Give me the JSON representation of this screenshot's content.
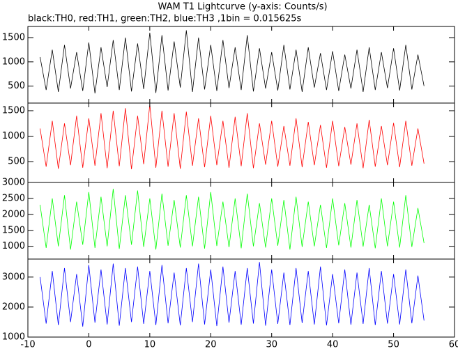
{
  "chart_data": [
    {
      "type": "line",
      "title": "WAM T1 Lightcurve (y-axis: Counts/s)",
      "subtitle": "black:TH0, red:TH1, green:TH2, blue:TH3 ,1bin = 0.015625s",
      "color": "#000000",
      "x": [
        -8,
        -7,
        -6,
        -5,
        -4,
        -3,
        -2,
        -1,
        0,
        1,
        2,
        3,
        4,
        5,
        6,
        7,
        8,
        9,
        10,
        11,
        12,
        13,
        14,
        15,
        16,
        17,
        18,
        19,
        20,
        21,
        22,
        23,
        24,
        25,
        26,
        27,
        28,
        29,
        30,
        31,
        32,
        33,
        34,
        35,
        36,
        37,
        38,
        39,
        40,
        41,
        42,
        43,
        44,
        45,
        46,
        47,
        48,
        49,
        50,
        51,
        52,
        53,
        54,
        55
      ],
      "values": [
        1100,
        420,
        1250,
        380,
        1350,
        450,
        1200,
        400,
        1400,
        350,
        1300,
        480,
        1450,
        420,
        1500,
        390,
        1380,
        440,
        1600,
        360,
        1550,
        410,
        1420,
        470,
        1650,
        380,
        1500,
        430,
        1350,
        400,
        1450,
        460,
        1300,
        420,
        1550,
        390,
        1280,
        450,
        1200,
        410,
        1350,
        430,
        1250,
        380,
        1300,
        470,
        1180,
        420,
        1220,
        400,
        1150,
        450,
        1250,
        380,
        1300,
        420,
        1200,
        460,
        1280,
        410,
        1350,
        430,
        1150,
        500
      ],
      "ylim": [
        150,
        1730
      ],
      "yticks": [
        500,
        1000,
        1500
      ]
    },
    {
      "type": "line",
      "color": "#ff0000",
      "x": [
        -8,
        -7,
        -6,
        -5,
        -4,
        -3,
        -2,
        -1,
        0,
        1,
        2,
        3,
        4,
        5,
        6,
        7,
        8,
        9,
        10,
        11,
        12,
        13,
        14,
        15,
        16,
        17,
        18,
        19,
        20,
        21,
        22,
        23,
        24,
        25,
        26,
        27,
        28,
        29,
        30,
        31,
        32,
        33,
        34,
        35,
        36,
        37,
        38,
        39,
        40,
        41,
        42,
        43,
        44,
        45,
        46,
        47,
        48,
        49,
        50,
        51,
        52,
        53,
        54,
        55
      ],
      "values": [
        1150,
        400,
        1300,
        360,
        1250,
        430,
        1400,
        380,
        1350,
        420,
        1450,
        370,
        1500,
        410,
        1550,
        350,
        1400,
        450,
        1620,
        380,
        1500,
        400,
        1450,
        360,
        1480,
        420,
        1350,
        390,
        1400,
        430,
        1300,
        380,
        1380,
        410,
        1450,
        370,
        1250,
        440,
        1300,
        400,
        1200,
        420,
        1350,
        390,
        1280,
        430,
        1220,
        380,
        1300,
        410,
        1180,
        440,
        1250,
        370,
        1320,
        400,
        1200,
        430,
        1260,
        390,
        1300,
        420,
        1150,
        460
      ],
      "ylim": [
        90,
        1650
      ],
      "yticks": [
        500,
        1000,
        1500
      ]
    },
    {
      "type": "line",
      "color": "#00ff00",
      "x": [
        -8,
        -7,
        -6,
        -5,
        -4,
        -3,
        -2,
        -1,
        0,
        1,
        2,
        3,
        4,
        5,
        6,
        7,
        8,
        9,
        10,
        11,
        12,
        13,
        14,
        15,
        16,
        17,
        18,
        19,
        20,
        21,
        22,
        23,
        24,
        25,
        26,
        27,
        28,
        29,
        30,
        31,
        32,
        33,
        34,
        35,
        36,
        37,
        38,
        39,
        40,
        41,
        42,
        43,
        44,
        45,
        46,
        47,
        48,
        49,
        50,
        51,
        52,
        53,
        54,
        55
      ],
      "values": [
        2300,
        950,
        2500,
        1000,
        2600,
        900,
        2400,
        1050,
        2700,
        950,
        2550,
        1000,
        2800,
        920,
        2600,
        1050,
        2750,
        980,
        2500,
        900,
        2650,
        1020,
        2450,
        960,
        2600,
        1000,
        2550,
        930,
        2700,
        1010,
        2400,
        970,
        2500,
        940,
        2650,
        1000,
        2350,
        960,
        2500,
        1020,
        2450,
        900,
        2550,
        980,
        2400,
        1000,
        2300,
        950,
        2500,
        1030,
        2350,
        960,
        2450,
        990,
        2300,
        940,
        2500,
        1000,
        2400,
        960,
        2600,
        980,
        2200,
        1100
      ],
      "ylim": [
        600,
        3000
      ],
      "yticks": [
        1000,
        1500,
        2000,
        2500,
        3000
      ]
    },
    {
      "type": "line",
      "color": "#0000ff",
      "x": [
        -8,
        -7,
        -6,
        -5,
        -4,
        -3,
        -2,
        -1,
        0,
        1,
        2,
        3,
        4,
        5,
        6,
        7,
        8,
        9,
        10,
        11,
        12,
        13,
        14,
        15,
        16,
        17,
        18,
        19,
        20,
        21,
        22,
        23,
        24,
        25,
        26,
        27,
        28,
        29,
        30,
        31,
        32,
        33,
        34,
        35,
        36,
        37,
        38,
        39,
        40,
        41,
        42,
        43,
        44,
        45,
        46,
        47,
        48,
        49,
        50,
        51,
        52,
        53,
        54,
        55
      ],
      "values": [
        3000,
        1450,
        3200,
        1400,
        3300,
        1500,
        3100,
        1350,
        3400,
        1480,
        3250,
        1420,
        3450,
        1380,
        3300,
        1500,
        3350,
        1440,
        3200,
        1400,
        3400,
        1460,
        3150,
        1390,
        3300,
        1500,
        3450,
        1420,
        3250,
        1370,
        3350,
        1480,
        3200,
        1410,
        3300,
        1450,
        3500,
        1380,
        3250,
        1440,
        3150,
        1400,
        3300,
        1470,
        3200,
        1420,
        3350,
        1390,
        3100,
        1460,
        3250,
        1410,
        3150,
        1440,
        3300,
        1400,
        3200,
        1450,
        3100,
        1420,
        3250,
        1460,
        3050,
        1550
      ],
      "ylim": [
        1000,
        3600
      ],
      "yticks": [
        1000,
        2000,
        3000
      ],
      "xlim": [
        -10,
        60
      ],
      "xticks": [
        -10,
        0,
        10,
        20,
        30,
        40,
        50,
        60
      ]
    }
  ]
}
